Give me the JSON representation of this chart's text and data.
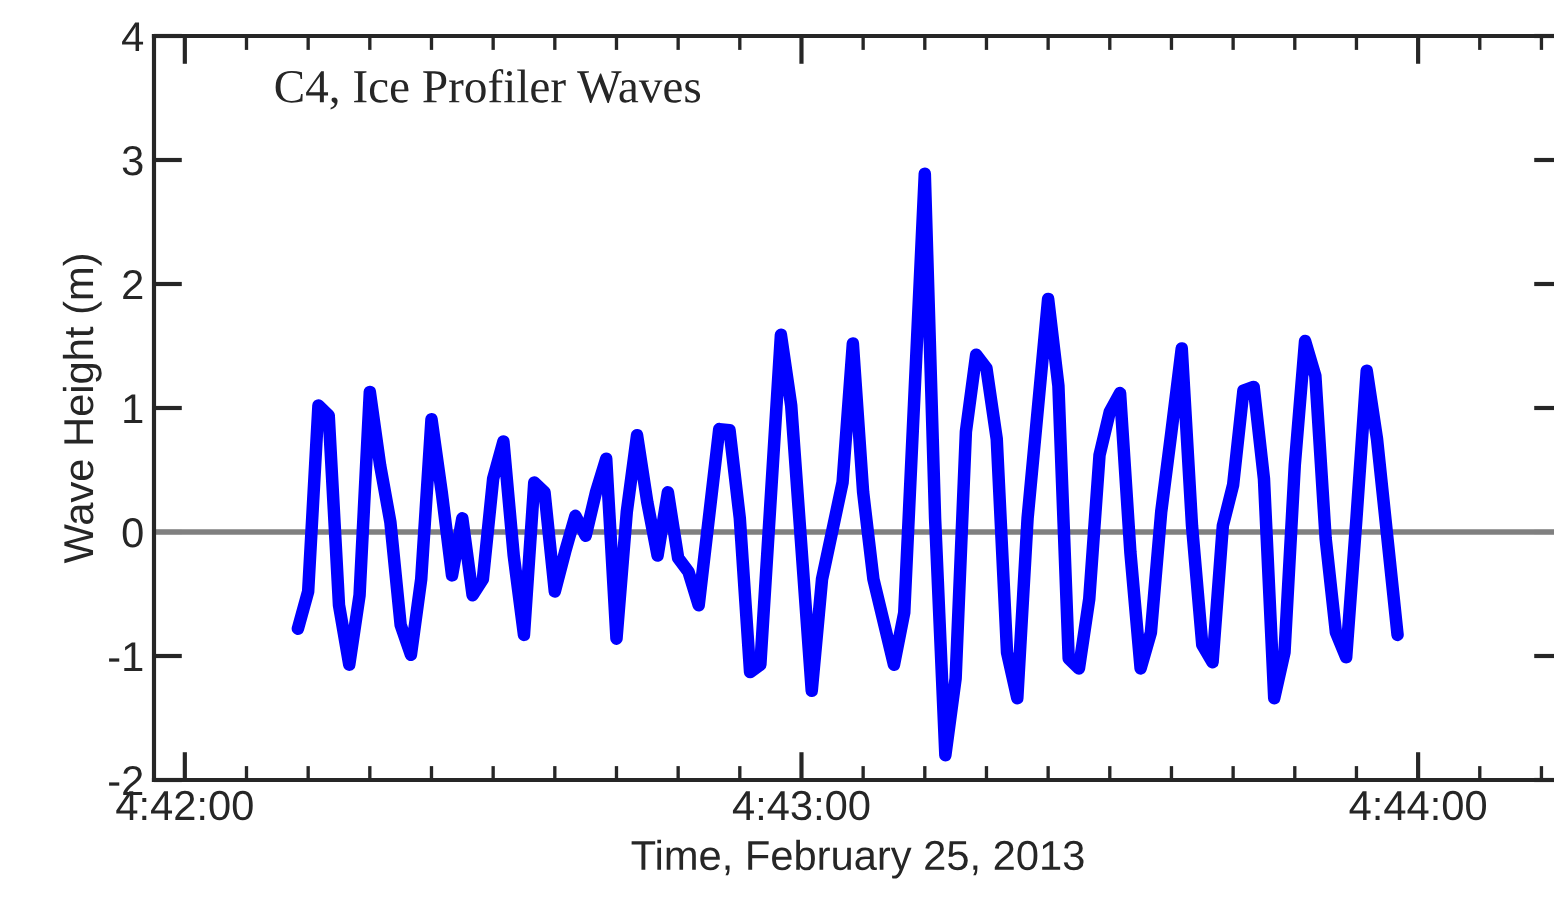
{
  "chart_data": {
    "type": "line",
    "title": "C4, Ice Profiler Waves",
    "xlabel": "Time, February 25, 2013",
    "ylabel": "Wave Height (m)",
    "x": [
      "2013-02-25T04:42:11",
      "2013-02-25T04:42:12",
      "2013-02-25T04:42:13",
      "2013-02-25T04:42:14",
      "2013-02-25T04:42:15",
      "2013-02-25T04:42:16",
      "2013-02-25T04:42:17",
      "2013-02-25T04:42:18",
      "2013-02-25T04:42:19",
      "2013-02-25T04:42:20",
      "2013-02-25T04:42:21",
      "2013-02-25T04:42:22",
      "2013-02-25T04:42:23",
      "2013-02-25T04:42:24",
      "2013-02-25T04:42:25",
      "2013-02-25T04:42:26",
      "2013-02-25T04:42:27",
      "2013-02-25T04:42:28",
      "2013-02-25T04:42:29",
      "2013-02-25T04:42:30",
      "2013-02-25T04:42:31",
      "2013-02-25T04:42:32",
      "2013-02-25T04:42:33",
      "2013-02-25T04:42:34",
      "2013-02-25T04:42:35",
      "2013-02-25T04:42:36",
      "2013-02-25T04:42:37",
      "2013-02-25T04:42:38",
      "2013-02-25T04:42:39",
      "2013-02-25T04:42:40",
      "2013-02-25T04:42:41",
      "2013-02-25T04:42:42",
      "2013-02-25T04:42:43",
      "2013-02-25T04:42:44",
      "2013-02-25T04:42:45",
      "2013-02-25T04:42:46",
      "2013-02-25T04:42:47",
      "2013-02-25T04:42:48",
      "2013-02-25T04:42:49",
      "2013-02-25T04:42:50",
      "2013-02-25T04:42:52",
      "2013-02-25T04:42:53",
      "2013-02-25T04:42:54",
      "2013-02-25T04:42:55",
      "2013-02-25T04:42:56",
      "2013-02-25T04:42:58",
      "2013-02-25T04:42:59",
      "2013-02-25T04:43:01",
      "2013-02-25T04:43:02",
      "2013-02-25T04:43:04",
      "2013-02-25T04:43:05",
      "2013-02-25T04:43:06",
      "2013-02-25T04:43:07",
      "2013-02-25T04:43:09",
      "2013-02-25T04:43:10",
      "2013-02-25T04:43:12",
      "2013-02-25T04:43:13",
      "2013-02-25T04:43:14",
      "2013-02-25T04:43:15",
      "2013-02-25T04:43:16",
      "2013-02-25T04:43:17",
      "2013-02-25T04:43:18",
      "2013-02-25T04:43:19",
      "2013-02-25T04:43:20",
      "2013-02-25T04:43:21",
      "2013-02-25T04:43:22",
      "2013-02-25T04:43:24",
      "2013-02-25T04:43:25",
      "2013-02-25T04:43:26",
      "2013-02-25T04:43:27",
      "2013-02-25T04:43:28",
      "2013-02-25T04:43:29",
      "2013-02-25T04:43:30",
      "2013-02-25T04:43:31",
      "2013-02-25T04:43:32",
      "2013-02-25T04:43:33",
      "2013-02-25T04:43:34",
      "2013-02-25T04:43:35",
      "2013-02-25T04:43:36",
      "2013-02-25T04:43:37",
      "2013-02-25T04:43:38",
      "2013-02-25T04:43:39",
      "2013-02-25T04:43:40",
      "2013-02-25T04:43:41",
      "2013-02-25T04:43:42",
      "2013-02-25T04:43:43",
      "2013-02-25T04:43:44",
      "2013-02-25T04:43:45",
      "2013-02-25T04:43:46",
      "2013-02-25T04:43:47",
      "2013-02-25T04:43:48",
      "2013-02-25T04:43:49",
      "2013-02-25T04:43:50",
      "2013-02-25T04:43:51",
      "2013-02-25T04:43:52",
      "2013-02-25T04:43:53",
      "2013-02-25T04:43:54",
      "2013-02-25T04:43:55",
      "2013-02-25T04:43:56",
      "2013-02-25T04:43:58"
    ],
    "series": [
      {
        "color": "#0000ff",
        "values": [
          -0.78,
          -0.48,
          1.02,
          0.94,
          -0.59,
          -1.07,
          -0.51,
          1.13,
          0.54,
          0.08,
          -0.75,
          -0.99,
          -0.38,
          0.91,
          0.32,
          -0.35,
          0.11,
          -0.51,
          -0.38,
          0.43,
          0.73,
          -0.19,
          -0.83,
          0.4,
          0.32,
          -0.48,
          -0.16,
          0.13,
          -0.03,
          0.32,
          0.59,
          -0.86,
          0.16,
          0.78,
          0.24,
          -0.19,
          0.32,
          -0.21,
          -0.32,
          -0.59,
          0.83,
          0.82,
          0.11,
          -1.13,
          -1.07,
          1.59,
          1.02,
          -1.28,
          -0.38,
          0.4,
          1.52,
          0.32,
          -0.38,
          -1.07,
          -0.65,
          2.89,
          0.11,
          -1.8,
          -1.18,
          0.81,
          1.43,
          1.32,
          0.75,
          -0.97,
          -1.34,
          0.11,
          1.88,
          1.18,
          -1.02,
          -1.1,
          -0.54,
          0.62,
          0.97,
          1.12,
          -0.16,
          -1.1,
          -0.81,
          0.16,
          0.81,
          1.48,
          0.05,
          -0.91,
          -1.05,
          0.05,
          0.38,
          1.14,
          1.17,
          0.43,
          -1.34,
          -0.97,
          0.54,
          1.54,
          1.26,
          -0.05,
          -0.81,
          -1.01,
          0.11,
          1.3,
          0.75,
          -0.83
        ]
      }
    ],
    "xlim": [
      "2013-02-25T04:41:57",
      "2013-02-25T04:44:14"
    ],
    "xticks": [
      {
        "value": "2013-02-25T04:42:00",
        "label": "4:42:00"
      },
      {
        "value": "2013-02-25T04:43:00",
        "label": "4:43:00"
      },
      {
        "value": "2013-02-25T04:44:00",
        "label": "4:44:00"
      }
    ],
    "ylim": [
      -2,
      4
    ],
    "yticks": [
      -2,
      -1,
      0,
      1,
      2,
      3,
      4
    ],
    "ref_lines": [
      {
        "axis": "y",
        "value": 0,
        "color": "#808080"
      }
    ],
    "grid": false,
    "legend": false,
    "line_style": "solid",
    "marker": "none"
  }
}
